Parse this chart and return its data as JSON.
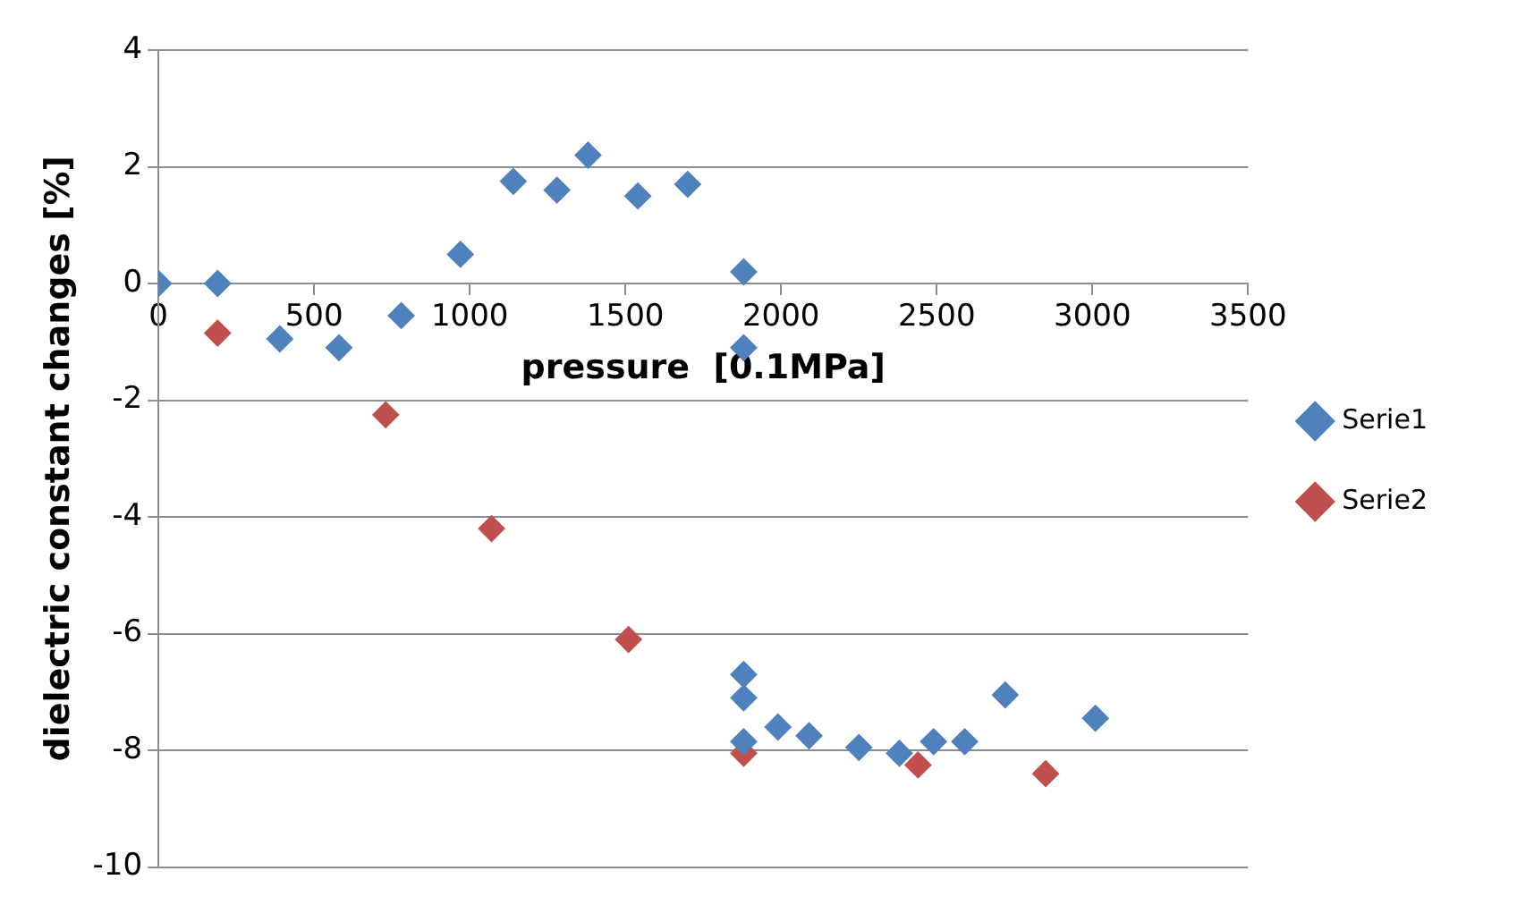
{
  "chart_data": {
    "type": "scatter",
    "xlabel": "pressure  [0.1MPa]",
    "ylabel": "dielectric constant changes [%]",
    "xlim": [
      0,
      3500
    ],
    "xticks": [
      0,
      500,
      1000,
      1500,
      2000,
      2500,
      3000,
      3500
    ],
    "ylim": [
      -10,
      4
    ],
    "yticks": [
      -10,
      -8,
      -6,
      -4,
      -2,
      0,
      2,
      4
    ],
    "grid": "y",
    "legend": "right",
    "marker": "diamond",
    "series": [
      {
        "name": "Serie1",
        "color": "#4f81bd",
        "x": [
          0,
          190,
          390,
          580,
          780,
          970,
          1140,
          1280,
          1380,
          1540,
          1700,
          1880,
          1880,
          1880,
          1880,
          1880,
          1990,
          2090,
          2250,
          2380,
          2490,
          2590,
          2720,
          3010
        ],
        "values": [
          0,
          0,
          -0.95,
          -1.1,
          -0.55,
          0.5,
          1.75,
          1.6,
          2.2,
          1.5,
          1.7,
          0.2,
          -1.1,
          -6.7,
          -7.1,
          -7.85,
          -7.6,
          -7.75,
          -7.95,
          -8.05,
          -7.85,
          -7.85,
          -7.05,
          -7.45
        ]
      },
      {
        "name": "Serie2",
        "color": "#c0504d",
        "x": [
          190,
          730,
          1070,
          1510,
          1880,
          2440,
          2850
        ],
        "values": [
          -0.85,
          -2.25,
          -4.2,
          -6.1,
          -8.05,
          -8.25,
          -8.4
        ]
      }
    ]
  }
}
